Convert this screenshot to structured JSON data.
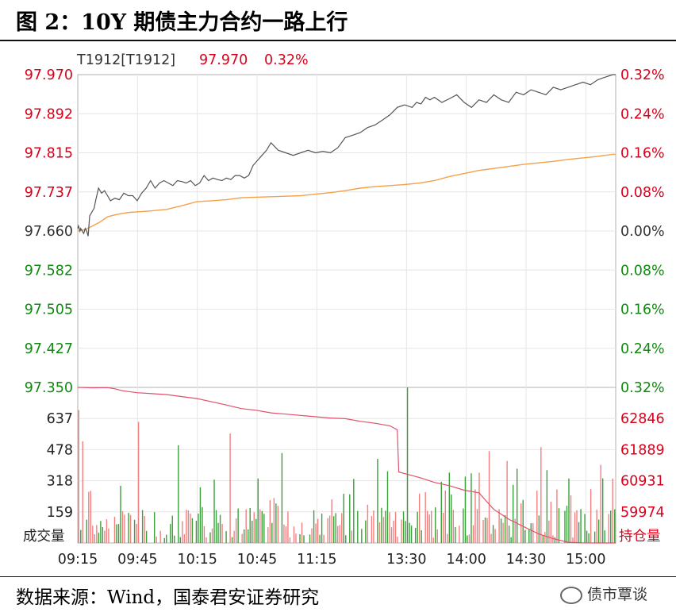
{
  "figure": {
    "title": "图 2：10Y 期债主力合约一路上行",
    "source": "数据来源：Wind，国泰君安证券研究",
    "watermark": "债市覃谈"
  },
  "colors": {
    "price_line": "#555555",
    "avg_line": "#f5a04a",
    "open_interest_line": "#e0506a",
    "volume_up": "#f08080",
    "volume_down": "#3aa13a",
    "axis_red": "#d9001b",
    "axis_green": "#0f8a0f",
    "grid": "#e6e6e6",
    "frame": "#b0b0b0"
  },
  "chart_data": {
    "type": "line",
    "header": {
      "symbol": "T1912[T1912]",
      "last": "97.970",
      "change": "0.32%"
    },
    "price_panel": {
      "y_ticks": [
        "97.970",
        "97.892",
        "97.815",
        "97.737",
        "97.660",
        "97.582",
        "97.505",
        "97.427",
        "97.350"
      ],
      "pct_ticks": [
        "0.32%",
        "0.24%",
        "0.16%",
        "0.08%",
        "0.00%",
        "0.08%",
        "0.16%",
        "0.24%",
        "0.32%"
      ],
      "ylim": [
        97.35,
        97.97
      ],
      "reference": 97.66,
      "series": [
        {
          "name": "price",
          "x": [
            0,
            0.5,
            1,
            1.5,
            2,
            3,
            4,
            5,
            6,
            7,
            8,
            9,
            10,
            11,
            12,
            14,
            16,
            18,
            20,
            22,
            25,
            28,
            31,
            34,
            37,
            40,
            43,
            46,
            49,
            52,
            55,
            58,
            61,
            64,
            67,
            70,
            73,
            76,
            79,
            82,
            85,
            88,
            91,
            94,
            97,
            100,
            103,
            106,
            109,
            112,
            115,
            118,
            121,
            124,
            127,
            130,
            135,
            140,
            145,
            150,
            155,
            160,
            165,
            170,
            175,
            180,
            185,
            190,
            195,
            200,
            205,
            210,
            215,
            220,
            225,
            228,
            231,
            234,
            237,
            240,
            245,
            250,
            255,
            260,
            265,
            270,
            275,
            280,
            285,
            290,
            295,
            300,
            305,
            310,
            315,
            320,
            325,
            330,
            335,
            340,
            345,
            350,
            355,
            360,
            362
          ],
          "y": [
            97.665,
            97.67,
            97.665,
            97.66,
            97.665,
            97.66,
            97.655,
            97.665,
            97.66,
            97.65,
            97.69,
            97.695,
            97.7,
            97.705,
            97.72,
            97.745,
            97.735,
            97.74,
            97.73,
            97.72,
            97.725,
            97.722,
            97.735,
            97.73,
            97.73,
            97.72,
            97.735,
            97.745,
            97.76,
            97.745,
            97.755,
            97.76,
            97.755,
            97.75,
            97.76,
            97.758,
            97.755,
            97.76,
            97.75,
            97.755,
            97.77,
            97.76,
            97.765,
            97.762,
            97.76,
            97.765,
            97.762,
            97.77,
            97.77,
            97.765,
            97.77,
            97.79,
            97.8,
            97.81,
            97.82,
            97.835,
            97.82,
            97.815,
            97.81,
            97.815,
            97.82,
            97.815,
            97.818,
            97.815,
            97.825,
            97.845,
            97.85,
            97.855,
            97.865,
            97.87,
            97.88,
            97.89,
            97.905,
            97.91,
            97.905,
            97.915,
            97.912,
            97.925,
            97.92,
            97.925,
            97.915,
            97.922,
            97.93,
            97.915,
            97.905,
            97.92,
            97.915,
            97.93,
            97.92,
            97.915,
            97.935,
            97.93,
            97.94,
            97.935,
            97.93,
            97.945,
            97.94,
            97.945,
            97.95,
            97.955,
            97.95,
            97.96,
            97.965,
            97.97,
            97.97
          ]
        },
        {
          "name": "average",
          "x": [
            0,
            5,
            10,
            15,
            20,
            25,
            30,
            35,
            40,
            50,
            60,
            70,
            80,
            90,
            100,
            110,
            120,
            130,
            140,
            150,
            160,
            170,
            180,
            190,
            200,
            210,
            220,
            230,
            240,
            250,
            260,
            270,
            280,
            290,
            300,
            310,
            320,
            330,
            340,
            350,
            360,
            362
          ],
          "y": [
            97.66,
            97.663,
            97.67,
            97.678,
            97.688,
            97.692,
            97.695,
            97.697,
            97.698,
            97.7,
            97.703,
            97.71,
            97.718,
            97.72,
            97.722,
            97.726,
            97.727,
            97.728,
            97.729,
            97.73,
            97.733,
            97.736,
            97.74,
            97.745,
            97.748,
            97.75,
            97.752,
            97.755,
            97.76,
            97.768,
            97.774,
            97.78,
            97.784,
            97.788,
            97.792,
            97.795,
            97.798,
            97.802,
            97.805,
            97.808,
            97.812,
            97.812
          ]
        }
      ]
    },
    "volume_panel": {
      "y_ticks": [
        "637",
        "478",
        "318",
        "159"
      ],
      "oi_ticks": [
        "62846",
        "61889",
        "60931",
        "59974"
      ],
      "left_label": "成交量",
      "right_label": "持仓量",
      "vol_max": 796,
      "oi_range": [
        59017,
        63803
      ],
      "volume_seed": 7,
      "open_interest": {
        "x": [
          0,
          10,
          20,
          25,
          30,
          40,
          50,
          60,
          70,
          80,
          90,
          100,
          110,
          120,
          130,
          140,
          150,
          160,
          170,
          180,
          190,
          200,
          210,
          215,
          216,
          220,
          230,
          240,
          250,
          260,
          270,
          275,
          280,
          290,
          300,
          310,
          320,
          330,
          340,
          350,
          362
        ],
        "y": [
          63803,
          63790,
          63795,
          63760,
          63700,
          63640,
          63610,
          63580,
          63520,
          63460,
          63360,
          63260,
          63150,
          63100,
          63020,
          62980,
          62940,
          62900,
          62860,
          62840,
          62760,
          62700,
          62620,
          62500,
          61200,
          61150,
          61030,
          60880,
          60780,
          60640,
          60560,
          60300,
          60050,
          59750,
          59520,
          59300,
          59150,
          59040,
          59020,
          59017,
          59017
        ]
      }
    },
    "x_ticks": [
      "09:15",
      "09:45",
      "10:15",
      "10:45",
      "11:15",
      "13:30",
      "14:00",
      "14:30",
      "15:00"
    ],
    "x_tick_positions": [
      0,
      30,
      60,
      90,
      120,
      165,
      195,
      225,
      255
    ],
    "x_range": [
      0,
      270
    ]
  }
}
